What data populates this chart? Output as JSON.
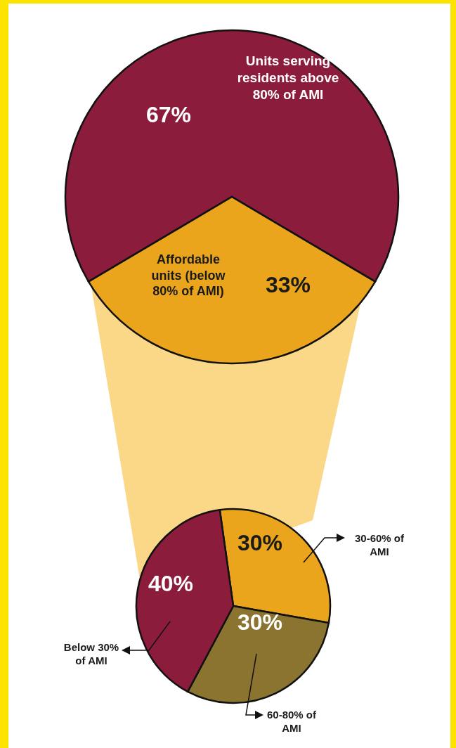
{
  "chart_data": [
    {
      "type": "pie",
      "categories": [
        "Units serving residents above 80% of AMI",
        "Affordable units (below 80% of AMI)"
      ],
      "values": [
        67,
        33
      ],
      "value_labels": [
        "67%",
        "33%"
      ],
      "colors": [
        "#8c1c3c",
        "#eaa51c"
      ]
    },
    {
      "type": "pie",
      "categories": [
        "30-60% of AMI",
        "60-80% of AMI",
        "Below 30% of AMI"
      ],
      "values": [
        30,
        30,
        40
      ],
      "value_labels": [
        "30%",
        "30%",
        "40%"
      ],
      "colors": [
        "#eaa51c",
        "#8a7430",
        "#8c1c3c"
      ]
    }
  ]
}
